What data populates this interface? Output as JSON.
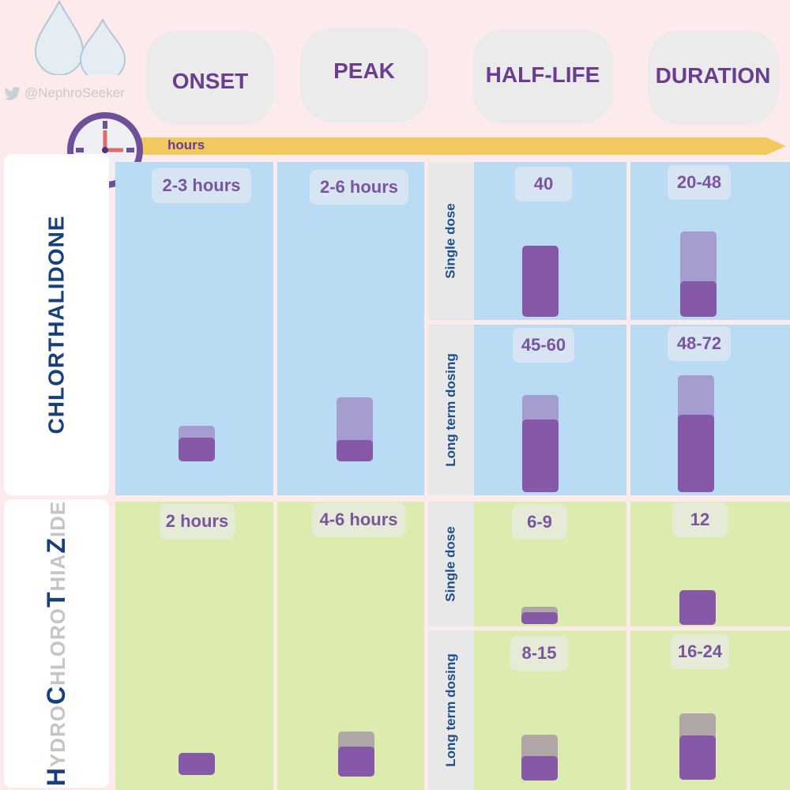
{
  "brand": {
    "handle": "@NephroSeeker",
    "icon": "twitter-bird-icon"
  },
  "header": {
    "onset": "ONSET",
    "peak": "PEAK",
    "half_life": "HALF-LIFE",
    "duration": "DURATION",
    "axis_label": "hours"
  },
  "colors": {
    "background": "#fdeaea",
    "blue_panel": "#b9dcf4",
    "green_panel": "#dcebae",
    "bar_dark": "#8559a8",
    "bar_light_blue": "#a59ccf",
    "bar_light_green": "#b1a6a6",
    "arrow": "#f2c95e",
    "text_navy": "#173f7a"
  },
  "chlorthalidone": {
    "name": "CHLORTHALIDONE",
    "onset": {
      "label": "2-3 hours",
      "min": 2,
      "max": 3
    },
    "peak": {
      "label": "2-6 hours",
      "min": 2,
      "max": 6
    },
    "single_dose": {
      "label": "Single dose",
      "half_life": {
        "label": "40",
        "min": 40,
        "max": 40
      },
      "duration": {
        "label": "20-48",
        "min": 20,
        "max": 48
      }
    },
    "long_term": {
      "label": "Long term dosing",
      "half_life": {
        "label": "45-60",
        "min": 45,
        "max": 60
      },
      "duration": {
        "label": "48-72",
        "min": 48,
        "max": 72
      }
    }
  },
  "hctz": {
    "name_parts": [
      {
        "text": "H",
        "style": "big"
      },
      {
        "text": "YDRO",
        "style": "sm"
      },
      {
        "text": "C",
        "style": "big"
      },
      {
        "text": "HLORO",
        "style": "sm"
      },
      {
        "text": "T",
        "style": "big"
      },
      {
        "text": "HIA",
        "style": "sm"
      },
      {
        "text": "Z",
        "style": "big"
      },
      {
        "text": "IDE",
        "style": "sm"
      }
    ],
    "onset": {
      "label": "2 hours",
      "min": 2,
      "max": 2
    },
    "peak": {
      "label": "4-6 hours",
      "min": 4,
      "max": 6
    },
    "single_dose": {
      "label": "Single dose",
      "half_life": {
        "label": "6-9",
        "min": 6,
        "max": 9
      },
      "duration": {
        "label": "12",
        "min": 12,
        "max": 12
      }
    },
    "long_term": {
      "label": "Long term dosing",
      "half_life": {
        "label": "8-15",
        "min": 8,
        "max": 15
      },
      "duration": {
        "label": "16-24",
        "min": 16,
        "max": 24
      }
    }
  }
}
